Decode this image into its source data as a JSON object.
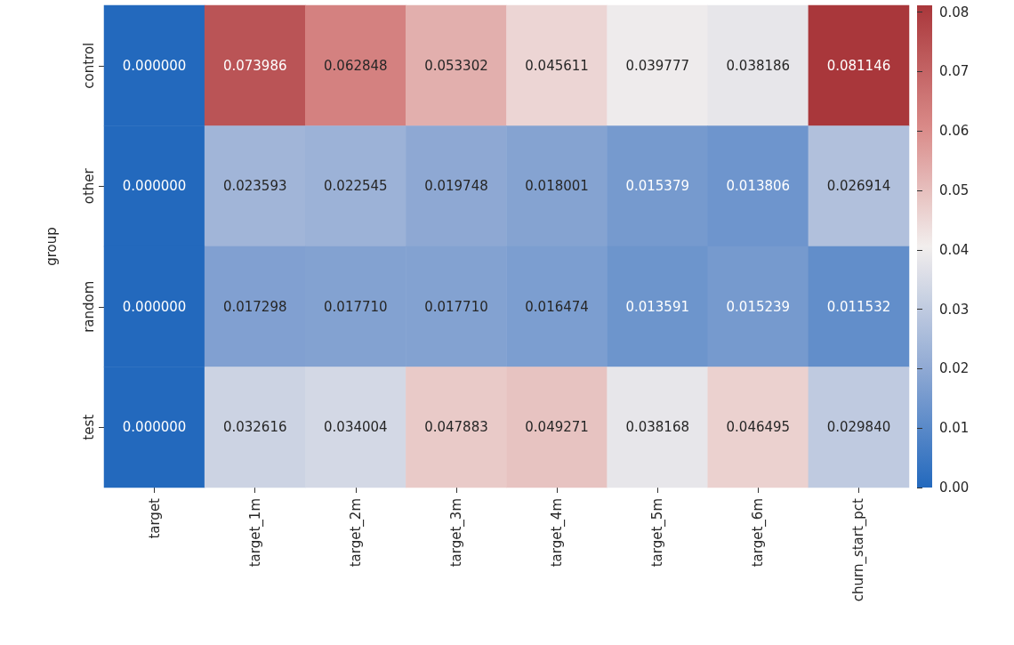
{
  "chart_data": {
    "type": "heatmap",
    "ylabel": "group",
    "categories": [
      "target",
      "target_1m",
      "target_2m",
      "target_3m",
      "target_4m",
      "target_5m",
      "target_6m",
      "churn_start_pct"
    ],
    "y_categories": [
      "control",
      "other",
      "random",
      "test"
    ],
    "cells": [
      [
        0.0,
        0.073986,
        0.062848,
        0.053302,
        0.045611,
        0.039777,
        0.038186,
        0.081146
      ],
      [
        0.0,
        0.023593,
        0.022545,
        0.019748,
        0.018001,
        0.015379,
        0.013806,
        0.026914
      ],
      [
        0.0,
        0.017298,
        0.01771,
        0.01771,
        0.016474,
        0.013591,
        0.015239,
        0.011532
      ],
      [
        0.0,
        0.032616,
        0.034004,
        0.047883,
        0.049271,
        0.038168,
        0.046495,
        0.02984
      ]
    ],
    "cell_labels": [
      [
        "0.000000",
        "0.073986",
        "0.062848",
        "0.053302",
        "0.045611",
        "0.039777",
        "0.038186",
        "0.081146"
      ],
      [
        "0.000000",
        "0.023593",
        "0.022545",
        "0.019748",
        "0.018001",
        "0.015379",
        "0.013806",
        "0.026914"
      ],
      [
        "0.000000",
        "0.017298",
        "0.017710",
        "0.017710",
        "0.016474",
        "0.013591",
        "0.015239",
        "0.011532"
      ],
      [
        "0.000000",
        "0.032616",
        "0.034004",
        "0.047883",
        "0.049271",
        "0.038168",
        "0.046495",
        "0.029840"
      ]
    ],
    "clim": [
      0,
      0.081146
    ],
    "cticks": [
      {
        "value": 0,
        "label": "0.00"
      },
      {
        "value": 0.01,
        "label": "0.01"
      },
      {
        "value": 0.02,
        "label": "0.02"
      },
      {
        "value": 0.03,
        "label": "0.03"
      },
      {
        "value": 0.04,
        "label": "0.04"
      },
      {
        "value": 0.05,
        "label": "0.05"
      },
      {
        "value": 0.06,
        "label": "0.06"
      },
      {
        "value": 0.07,
        "label": "0.07"
      },
      {
        "value": 0.08,
        "label": "0.08"
      }
    ]
  }
}
